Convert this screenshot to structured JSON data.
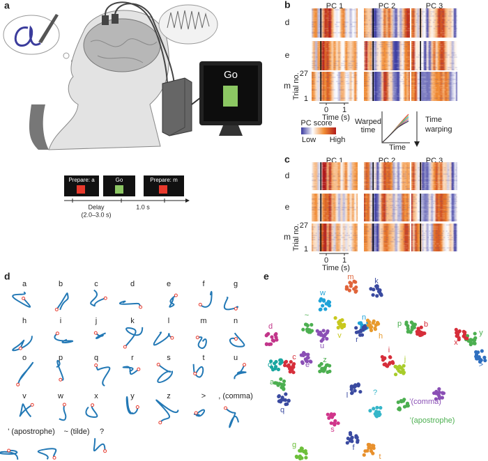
{
  "panel_a": {
    "label": "a",
    "monitor_text": "Go",
    "timeline": {
      "screens": [
        "Prepare: a",
        "Go",
        "Prepare: m"
      ],
      "delay": "Delay",
      "delay_range": "(2.0–3.0 s)",
      "interval": "1.0 s"
    }
  },
  "panel_b": {
    "label": "b",
    "columns": [
      "PC 1",
      "PC 2",
      "PC 3"
    ],
    "rows": [
      "d",
      "e",
      "m"
    ],
    "y_axis": "Trial no.",
    "y_ticks": [
      "27",
      "1"
    ],
    "x_ticks": [
      "0",
      "1"
    ],
    "x_axis": "Time (s)",
    "colorbar": {
      "title": "PC score",
      "low": "Low",
      "high": "High"
    },
    "warp": {
      "y_label": [
        "Warped",
        "time"
      ],
      "x_label": "Time",
      "arrow_label": [
        "Time",
        "warping"
      ]
    }
  },
  "panel_c": {
    "label": "c",
    "columns": [
      "PC 1",
      "PC 2",
      "PC 3"
    ],
    "rows": [
      "d",
      "e",
      "m"
    ],
    "y_axis": "Trial no.",
    "y_ticks": [
      "27",
      "1"
    ],
    "x_ticks": [
      "0",
      "1"
    ],
    "x_axis": "Time (s)"
  },
  "panel_d": {
    "label": "d",
    "characters": [
      "a",
      "b",
      "c",
      "d",
      "e",
      "f",
      "g",
      "h",
      "i",
      "j",
      "k",
      "l",
      "m",
      "n",
      "o",
      "p",
      "q",
      "r",
      "s",
      "t",
      "u",
      "v",
      "w",
      "x",
      "y",
      "z",
      ">",
      ", (comma)",
      "' (apostrophe)",
      "~ (tilde)",
      "?"
    ]
  },
  "panel_e": {
    "label": "e",
    "clusters": [
      {
        "label": "m",
        "color": "#e0643a"
      },
      {
        "label": "k",
        "color": "#3a4aa0"
      },
      {
        "label": "w",
        "color": "#1fa3d8"
      },
      {
        "label": "n",
        "color": "#1fa3d8"
      },
      {
        "label": "~",
        "color": "#4caf50"
      },
      {
        "label": "d",
        "color": "#c2358a"
      },
      {
        "label": "p",
        "color": "#4caf50"
      },
      {
        "label": "b",
        "color": "#d62e3a"
      },
      {
        "label": "y",
        "color": "#4caf50"
      },
      {
        "label": "x",
        "color": "#d62e3a"
      },
      {
        "label": ">",
        "color": "#2f6fbf"
      },
      {
        "label": "v",
        "color": "#c8c81e"
      },
      {
        "label": "u",
        "color": "#8a4fb5"
      },
      {
        "label": "h",
        "color": "#e89a2c"
      },
      {
        "label": "r",
        "color": "#3a4aa0"
      },
      {
        "label": "c",
        "color": "#d62e3a"
      },
      {
        "label": "e",
        "color": "#8a4fb5"
      },
      {
        "label": "z",
        "color": "#4caf50"
      },
      {
        "label": "i",
        "color": "#d62e3a"
      },
      {
        "label": "j",
        "color": "#a8cc2a"
      },
      {
        "label": "o",
        "color": "#1aa6a0"
      },
      {
        "label": "a",
        "color": "#4caf50"
      },
      {
        "label": "l",
        "color": "#3a4aa0"
      },
      {
        "label": "q",
        "color": "#3a4aa0"
      },
      {
        "label": "?",
        "color": "#35b6c9"
      },
      {
        "label": "’(comma)",
        "color": "#8a4fb5"
      },
      {
        "label": "’(apostrophe)",
        "color": "#4caf50"
      },
      {
        "label": "s",
        "color": "#d0358a"
      },
      {
        "label": "g",
        "color": "#6cbf3a"
      },
      {
        "label": "f",
        "color": "#3a4aa0"
      },
      {
        "label": "t",
        "color": "#e8902c"
      }
    ]
  }
}
